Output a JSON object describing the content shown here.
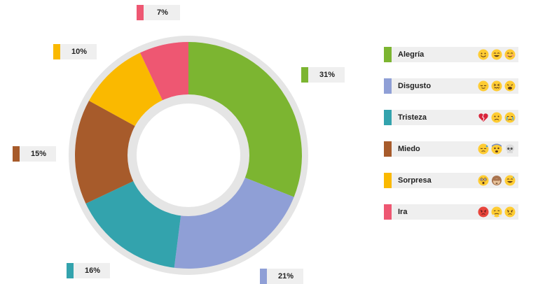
{
  "chart_data": {
    "type": "pie",
    "donut": true,
    "categories": [
      "Alegría",
      "Disgusto",
      "Tristeza",
      "Miedo",
      "Sorpresa",
      "Ira"
    ],
    "values": [
      31,
      21,
      16,
      15,
      10,
      7
    ],
    "value_labels": [
      "31%",
      "21%",
      "16%",
      "15%",
      "10%",
      "7%"
    ],
    "colors": [
      "#7cb531",
      "#8f9fd6",
      "#33a3ad",
      "#a75b2b",
      "#fab900",
      "#ee5772"
    ],
    "legend_placement": "right",
    "title": ""
  },
  "legend": {
    "items": [
      {
        "label": "Alegría",
        "icons": [
          "smiling-face-icon",
          "grinning-face-icon",
          "blushing-face-icon"
        ]
      },
      {
        "label": "Disgusto",
        "icons": [
          "relieved-face-icon",
          "confounded-face-icon",
          "weary-face-icon"
        ]
      },
      {
        "label": "Tristeza",
        "icons": [
          "broken-heart-icon",
          "slightly-frowning-face-icon",
          "crying-face-icon"
        ]
      },
      {
        "label": "Miedo",
        "icons": [
          "disappointed-relieved-face-icon",
          "fearful-face-icon",
          "skull-icon"
        ]
      },
      {
        "label": "Sorpresa",
        "icons": [
          "astonished-face-icon",
          "see-no-evil-monkey-icon",
          "grinning-sweat-face-icon"
        ]
      },
      {
        "label": "Ira",
        "icons": [
          "pouting-face-icon",
          "steam-nose-face-icon",
          "angry-face-icon"
        ]
      }
    ]
  }
}
